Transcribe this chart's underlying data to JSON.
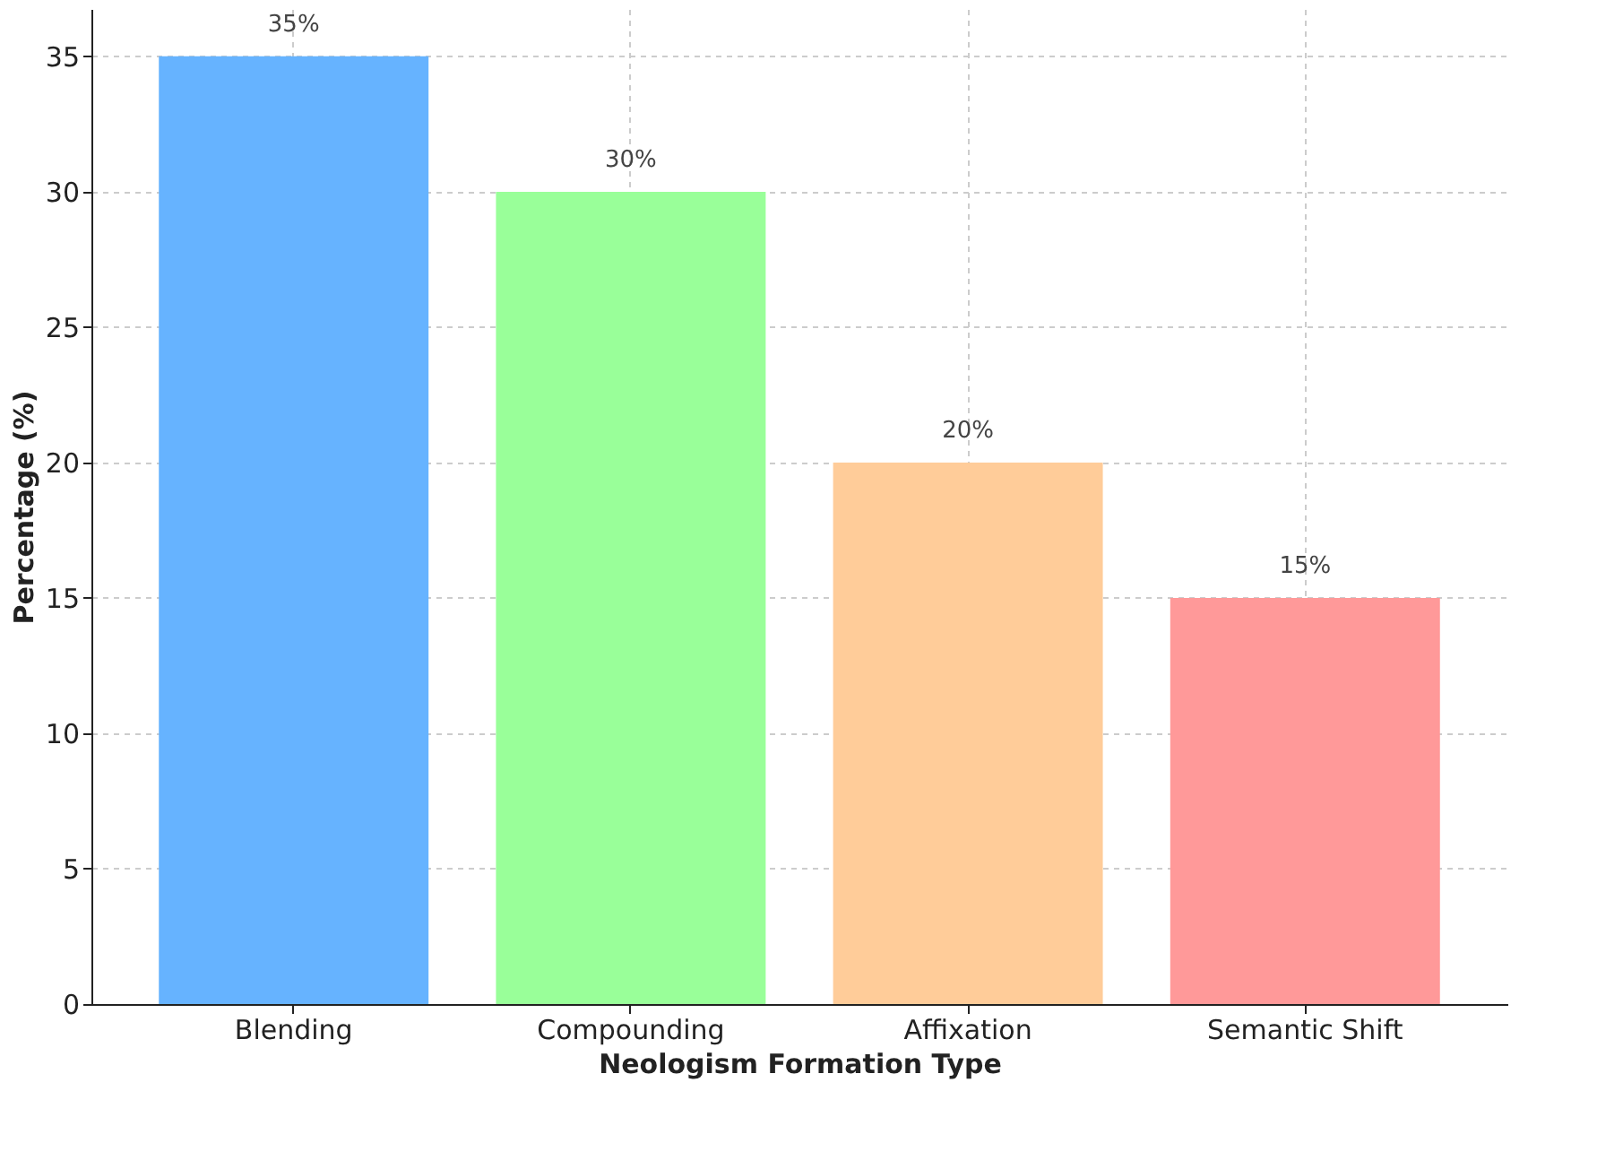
{
  "chart_data": {
    "type": "bar",
    "categories": [
      "Blending",
      "Compounding",
      "Affixation",
      "Semantic Shift"
    ],
    "values": [
      35,
      30,
      20,
      15
    ],
    "colors": [
      "#66b3ff",
      "#99ff99",
      "#ffcc99",
      "#ff9999"
    ],
    "value_labels": [
      "35%",
      "30%",
      "20%",
      "15%"
    ],
    "xlabel": "Neologism Formation Type",
    "ylabel": "Percentage (%)",
    "ylim": [
      0,
      36.75
    ],
    "yticks": [
      0,
      5,
      10,
      15,
      20,
      25,
      30,
      35
    ],
    "grid": true
  }
}
